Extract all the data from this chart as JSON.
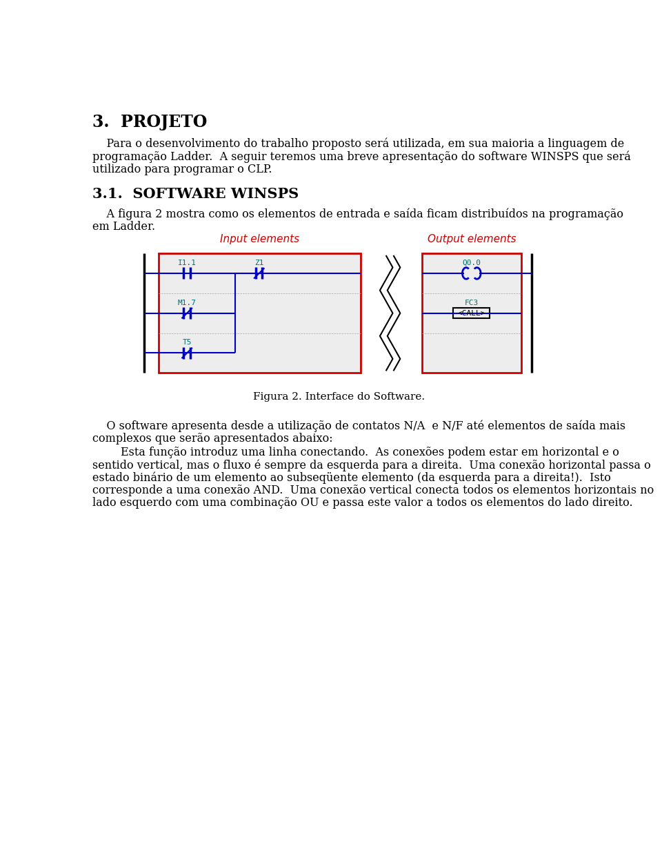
{
  "title": "3.  PROJETO",
  "section_title": "3.1.  SOFTWARE WINSPS",
  "para1_lines": [
    "    Para o desenvolvimento do trabalho proposto será utilizada, em sua maioria a linguagem de",
    "programação Ladder.  A seguir teremos uma breve apresentação do software WINSPS que será",
    "utilizado para programar o CLP."
  ],
  "para2_lines": [
    "    A figura 2 mostra como os elementos de entrada e saída ficam distribuídos na programação",
    "em Ladder."
  ],
  "fig_caption": "Figura 2. Interface do Software.",
  "para3_lines": [
    "    O software apresenta desde a utilização de contatos N/A  e N/F até elementos de saída mais",
    "complexos que serão apresentados abaixo:"
  ],
  "para4_lines": [
    "        Esta função introduz uma linha conectando.  As conexões podem estar em horizontal e o",
    "sentido vertical, mas o fluxo é sempre da esquerda para a direita.  Uma conexão horizontal passa o",
    "estado binário de um elemento ao subseqüente elemento (da esquerda para a direita!).  Isto",
    "corresponde a uma conexão AND.  Uma conexão vertical conecta todos os elementos horizontais no",
    "lado esquerdo com uma combinação OU e passa este valor a todos os elementos do lado direito."
  ],
  "label_input": "Input elements",
  "label_output": "Output elements",
  "label_color": "#cc0000",
  "box_color": "#cc0000",
  "ladder_color": "#0000cc",
  "text_teal": "#007070",
  "bg_color": "#ffffff"
}
